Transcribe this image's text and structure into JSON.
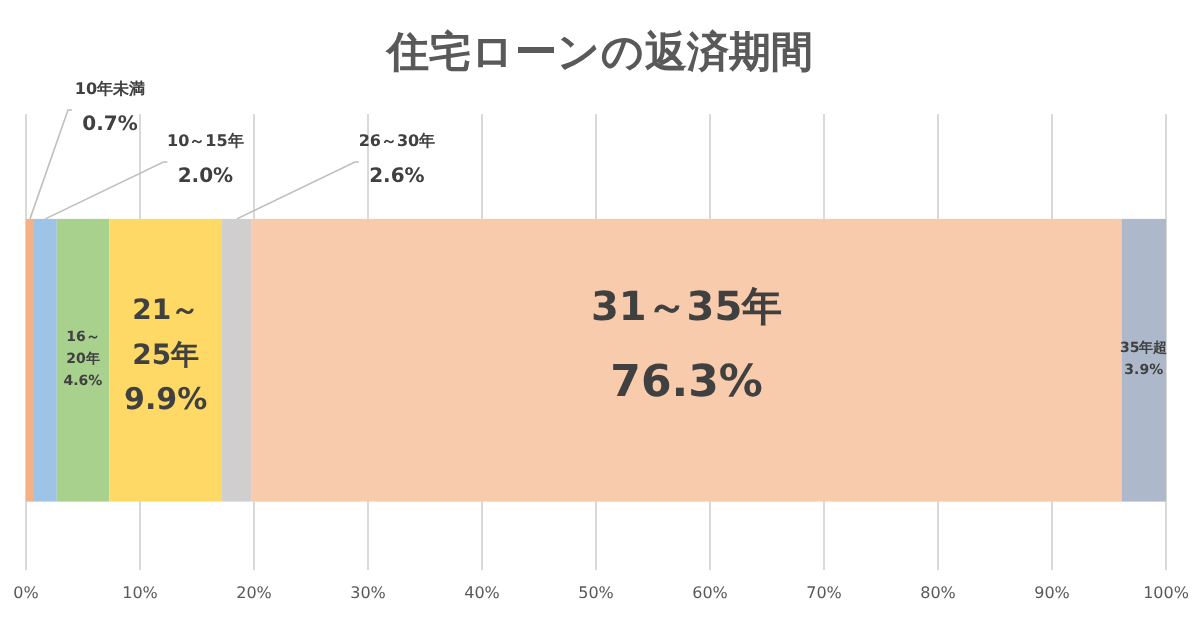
{
  "chart_data": {
    "type": "bar",
    "title": "住宅ローンの返済期間",
    "orientation": "horizontal",
    "stacked": true,
    "categories": [
      null
    ],
    "series": [
      {
        "name": "10年未満",
        "color": "#f4b183",
        "values": [
          0.7
        ],
        "value_labels": [
          "0.7%"
        ]
      },
      {
        "name": "10～15年",
        "color": "#9dc3e6",
        "values": [
          2.0
        ],
        "value_labels": [
          "2.0%"
        ]
      },
      {
        "name": "16～20年",
        "color": "#a9d18e",
        "values": [
          4.6
        ],
        "value_labels": [
          "4.6%"
        ]
      },
      {
        "name": "21～25年",
        "color": "#ffd966",
        "values": [
          9.9
        ],
        "value_labels": [
          "9.9%"
        ]
      },
      {
        "name": "26～30年",
        "color": "#d0cece",
        "values": [
          2.6
        ],
        "value_labels": [
          "2.6%"
        ]
      },
      {
        "name": "31～35年",
        "color": "#f8cbad",
        "values": [
          76.3
        ],
        "value_labels": [
          "76.3%"
        ]
      },
      {
        "name": "35年超",
        "color": "#adb9ca",
        "values": [
          3.9
        ],
        "value_labels": [
          "3.9%"
        ]
      }
    ],
    "xlim": [
      0,
      100
    ],
    "xticks": [
      {
        "value": 0,
        "label": "0%"
      },
      {
        "value": 10,
        "label": "10%"
      },
      {
        "value": 20,
        "label": "20%"
      },
      {
        "value": 30,
        "label": "30%"
      },
      {
        "value": 40,
        "label": "40%"
      },
      {
        "value": 50,
        "label": "50%"
      },
      {
        "value": 60,
        "label": "60%"
      },
      {
        "value": 70,
        "label": "70%"
      },
      {
        "value": 80,
        "label": "80%"
      },
      {
        "value": 90,
        "label": "90%"
      },
      {
        "value": 100,
        "label": "100%"
      }
    ],
    "grid": "x"
  }
}
